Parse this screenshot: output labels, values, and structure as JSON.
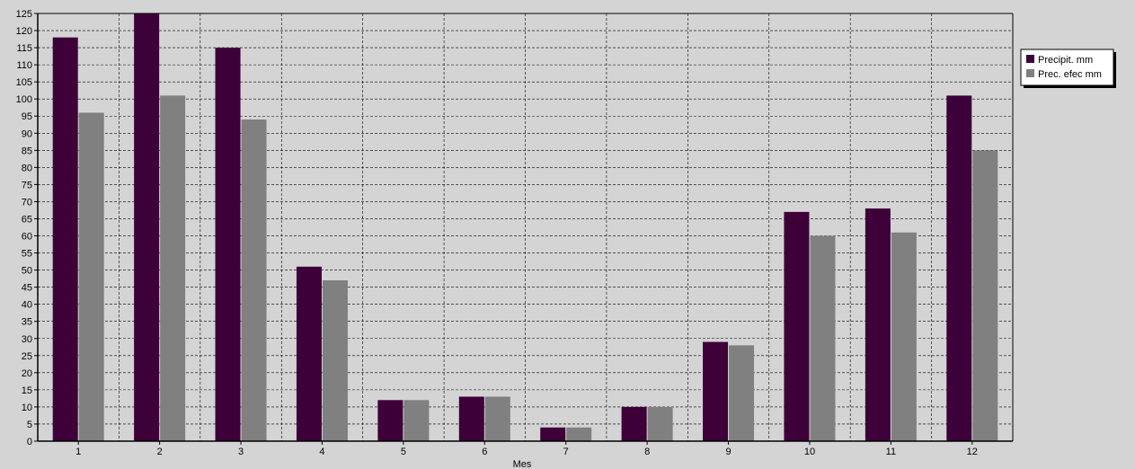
{
  "chart_data": {
    "type": "bar",
    "title": "",
    "xlabel": "Mes",
    "ylabel": "",
    "categories": [
      "1",
      "2",
      "3",
      "4",
      "5",
      "6",
      "7",
      "8",
      "9",
      "10",
      "11",
      "12"
    ],
    "series": [
      {
        "name": "Precipit. mm",
        "color": "#3d0039",
        "values": [
          118,
          125,
          115,
          51,
          12,
          13,
          4,
          10,
          29,
          67,
          68,
          101
        ]
      },
      {
        "name": "Prec. efec mm",
        "color": "#808080",
        "values": [
          96,
          101,
          94,
          47,
          12,
          13,
          4,
          10,
          28,
          60,
          61,
          85
        ]
      }
    ],
    "ylim": [
      0,
      125
    ],
    "ytick_step": 5,
    "grid": true,
    "legend_position": "top-right",
    "plot_background": "#d4d4d4"
  }
}
